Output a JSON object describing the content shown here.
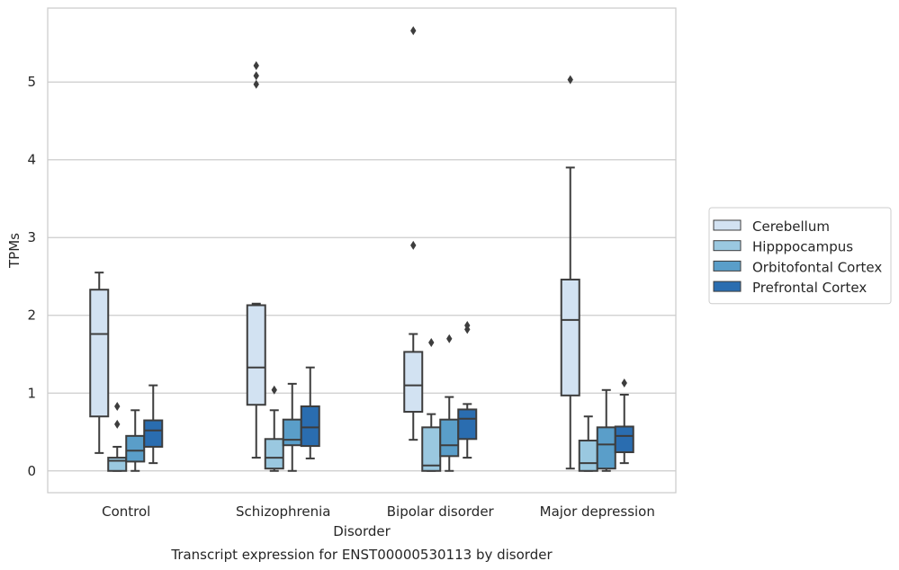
{
  "chart_data": {
    "type": "box",
    "title": "",
    "xlabel": "Disorder",
    "ylabel": "TPMs",
    "caption": "Transcript expression for ENST00000530113 by disorder",
    "ylim": [
      -0.28,
      5.95
    ],
    "yticks": [
      0,
      1,
      2,
      3,
      4,
      5
    ],
    "grid": true,
    "legend_position": "right",
    "categories": [
      "Control",
      "Schizophrenia",
      "Bipolar disorder",
      "Major depression"
    ],
    "series": [
      {
        "name": "Cerebellum",
        "color": "#d2e2f2",
        "boxes": [
          {
            "whislo": 0.23,
            "q1": 0.7,
            "med": 1.76,
            "q3": 2.33,
            "whishi": 2.55,
            "fliers": []
          },
          {
            "whislo": 0.17,
            "q1": 0.85,
            "med": 1.33,
            "q3": 2.13,
            "whishi": 2.15,
            "fliers": [
              4.97,
              5.08,
              5.21
            ]
          },
          {
            "whislo": 0.4,
            "q1": 0.76,
            "med": 1.1,
            "q3": 1.53,
            "whishi": 1.76,
            "fliers": [
              2.9,
              5.66
            ]
          },
          {
            "whislo": 0.03,
            "q1": 0.97,
            "med": 1.94,
            "q3": 2.46,
            "whishi": 3.9,
            "fliers": [
              5.03
            ]
          }
        ]
      },
      {
        "name": "Hipppocampus",
        "color": "#9ac8e0",
        "boxes": [
          {
            "whislo": 0.0,
            "q1": 0.0,
            "med": 0.13,
            "q3": 0.17,
            "whishi": 0.31,
            "fliers": [
              0.6,
              0.83
            ]
          },
          {
            "whislo": 0.0,
            "q1": 0.03,
            "med": 0.17,
            "q3": 0.41,
            "whishi": 0.78,
            "fliers": [
              1.04
            ]
          },
          {
            "whislo": 0.0,
            "q1": 0.0,
            "med": 0.07,
            "q3": 0.56,
            "whishi": 0.73,
            "fliers": [
              1.65
            ]
          },
          {
            "whislo": 0.0,
            "q1": 0.0,
            "med": 0.1,
            "q3": 0.39,
            "whishi": 0.7,
            "fliers": []
          }
        ]
      },
      {
        "name": "Orbitofontal Cortex",
        "color": "#5a9ec9",
        "boxes": [
          {
            "whislo": 0.0,
            "q1": 0.12,
            "med": 0.26,
            "q3": 0.45,
            "whishi": 0.78,
            "fliers": []
          },
          {
            "whislo": 0.0,
            "q1": 0.33,
            "med": 0.4,
            "q3": 0.66,
            "whishi": 1.12,
            "fliers": []
          },
          {
            "whislo": 0.0,
            "q1": 0.19,
            "med": 0.33,
            "q3": 0.66,
            "whishi": 0.95,
            "fliers": [
              1.7
            ]
          },
          {
            "whislo": 0.0,
            "q1": 0.03,
            "med": 0.34,
            "q3": 0.56,
            "whishi": 1.04,
            "fliers": []
          }
        ]
      },
      {
        "name": "Prefrontal Cortex",
        "color": "#2a6db0",
        "boxes": [
          {
            "whislo": 0.1,
            "q1": 0.31,
            "med": 0.52,
            "q3": 0.65,
            "whishi": 1.1,
            "fliers": []
          },
          {
            "whislo": 0.16,
            "q1": 0.32,
            "med": 0.56,
            "q3": 0.83,
            "whishi": 1.33,
            "fliers": []
          },
          {
            "whislo": 0.17,
            "q1": 0.41,
            "med": 0.67,
            "q3": 0.79,
            "whishi": 0.86,
            "fliers": [
              1.82,
              1.87
            ]
          },
          {
            "whislo": 0.1,
            "q1": 0.24,
            "med": 0.45,
            "q3": 0.57,
            "whishi": 0.98,
            "fliers": [
              1.13
            ]
          }
        ]
      }
    ]
  }
}
